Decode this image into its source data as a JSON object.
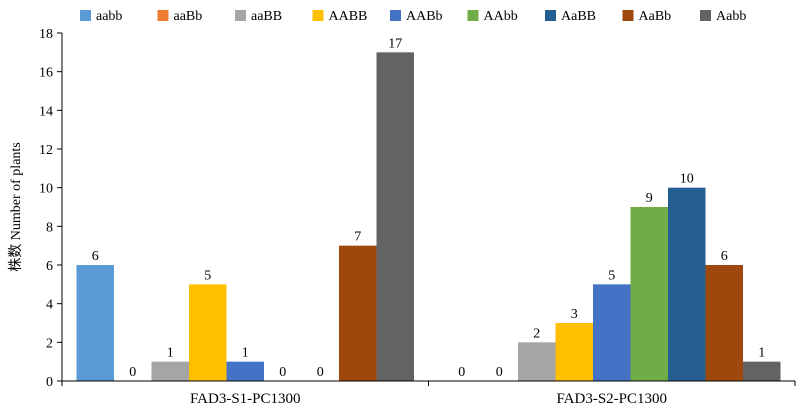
{
  "chart_data": {
    "type": "bar",
    "title": "",
    "xlabel": "",
    "ylabel": "株数 Number of plants",
    "ylim": [
      0,
      18
    ],
    "yticks": [
      0,
      2,
      4,
      6,
      8,
      10,
      12,
      14,
      16,
      18
    ],
    "categories": [
      "FAD3-S1-PC1300",
      "FAD3-S2-PC1300"
    ],
    "legend_position": "top",
    "grid": false,
    "series": [
      {
        "name": "aabb",
        "color": "#5b9bd5",
        "values": [
          6,
          0
        ]
      },
      {
        "name": "aaBb",
        "color": "#ed7d31",
        "values": [
          0,
          0
        ]
      },
      {
        "name": "aaBB",
        "color": "#a5a5a5",
        "values": [
          1,
          2
        ]
      },
      {
        "name": "AABB",
        "color": "#ffc000",
        "values": [
          5,
          3
        ]
      },
      {
        "name": "AABb",
        "color": "#4472c4",
        "values": [
          1,
          5
        ]
      },
      {
        "name": "AAbb",
        "color": "#70ad47",
        "values": [
          0,
          9
        ]
      },
      {
        "name": "AaBB",
        "color": "#255e91",
        "values": [
          0,
          10
        ]
      },
      {
        "name": "AaBb",
        "color": "#9e480e",
        "values": [
          7,
          6
        ]
      },
      {
        "name": "Aabb",
        "color": "#636363",
        "values": [
          17,
          1
        ]
      }
    ]
  }
}
